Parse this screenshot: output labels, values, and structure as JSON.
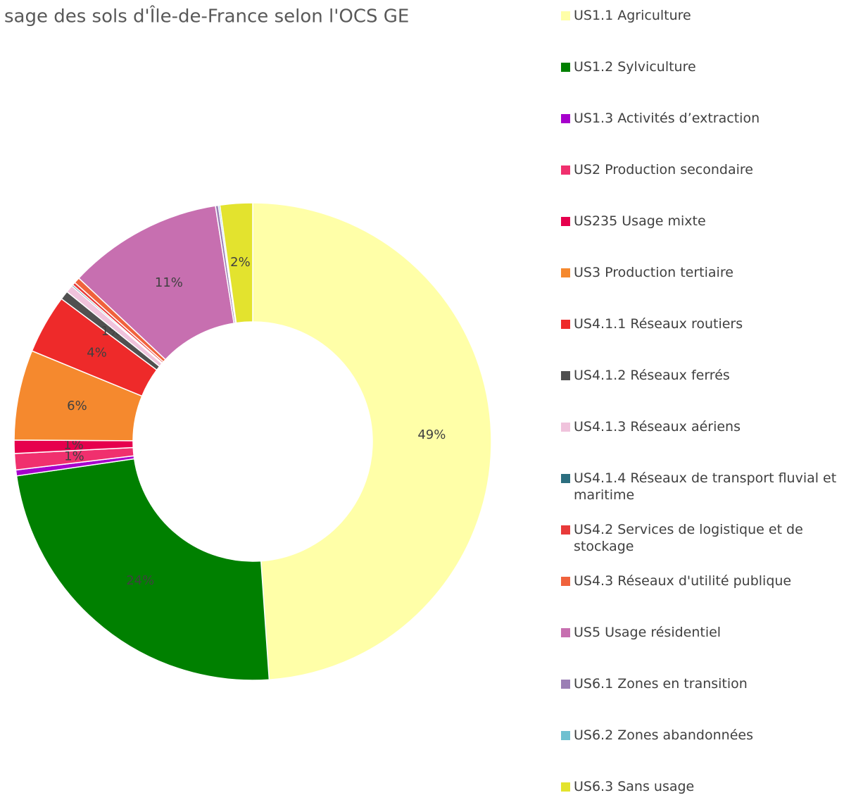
{
  "chart_data": {
    "type": "donut",
    "title": "sage des sols d'Île-de-France selon l'OCS GE",
    "categories": [
      "US1.1 Agriculture",
      "US1.2 Sylviculture",
      "US1.3 Activités d’extraction",
      "US2 Production secondaire",
      "US235 Usage mixte",
      "US3 Production tertiaire",
      "US4.1.1 Réseaux routiers",
      "US4.1.2 Réseaux ferrés",
      "US4.1.3 Réseaux aériens",
      "US4.1.4 Réseaux de transport fluvial et maritime",
      "US4.2 Services de logistique et de stockage",
      "US4.3 Réseaux d'utilité publique",
      "US5 Usage résidentiel",
      "US6.1 Zones en transition",
      "US6.2 Zones abandonnées",
      "US6.3 Sans usage"
    ],
    "values": [
      48.9,
      23.8,
      0.4,
      1.1,
      0.9,
      6.1,
      4.0,
      0.6,
      0.5,
      0.1,
      0.2,
      0.4,
      10.5,
      0.2,
      0.1,
      2.2
    ],
    "value_labels": [
      "49%",
      "24%",
      null,
      "1%",
      "1%",
      "6%",
      "4%",
      "1%",
      null,
      null,
      null,
      null,
      "11%",
      null,
      null,
      "2%"
    ],
    "colors": [
      "#ffffa8",
      "#008000",
      "#a600cc",
      "#f0306e",
      "#e6004d",
      "#f5892e",
      "#ee2a2a",
      "#505050",
      "#f0c3dc",
      "#2b6e7f",
      "#e83a3a",
      "#f0623c",
      "#c76fb0",
      "#9b7fb5",
      "#6fc0d0",
      "#e3e32e"
    ]
  }
}
